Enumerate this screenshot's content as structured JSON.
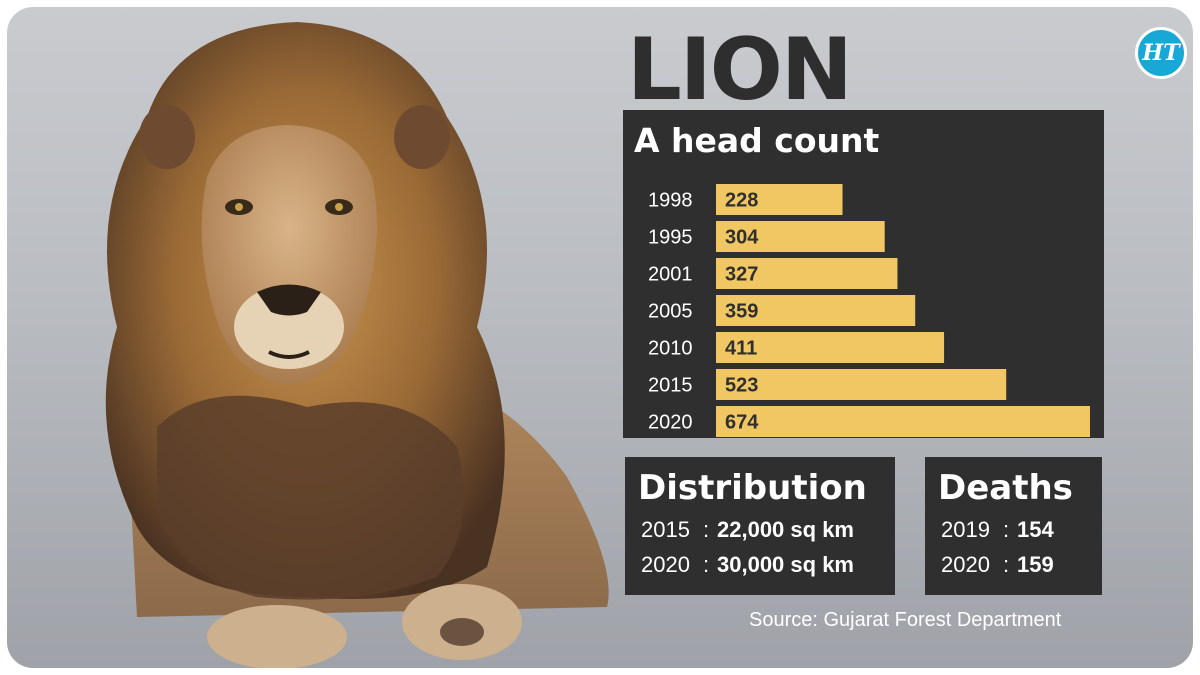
{
  "title": "LION",
  "logo_text": "HT",
  "head_count": {
    "title": "A head count"
  },
  "chart_data": {
    "type": "bar",
    "orientation": "horizontal",
    "title": "A head count",
    "categories": [
      "1998",
      "1995",
      "2001",
      "2005",
      "2010",
      "2015",
      "2020"
    ],
    "values": [
      228,
      304,
      327,
      359,
      411,
      523,
      674
    ],
    "data_labels": true,
    "bar_color": "#f0c763",
    "panel_color": "#2f2f2f"
  },
  "distribution": {
    "title": "Distribution",
    "rows": [
      {
        "year": "2015",
        "sep": ":",
        "value": "22,000 sq km"
      },
      {
        "year": "2020",
        "sep": ":",
        "value": "30,000 sq km"
      }
    ]
  },
  "deaths": {
    "title": "Deaths",
    "rows": [
      {
        "year": "2019",
        "sep": ":",
        "value": "154"
      },
      {
        "year": "2020",
        "sep": ":",
        "value": "159"
      }
    ]
  },
  "source": "Source: Gujarat Forest Department",
  "colors": {
    "panel": "#2f2f2f",
    "bar": "#f0c763",
    "title_text": "#2e2e2e",
    "logo_bg": "#18a8d6"
  }
}
